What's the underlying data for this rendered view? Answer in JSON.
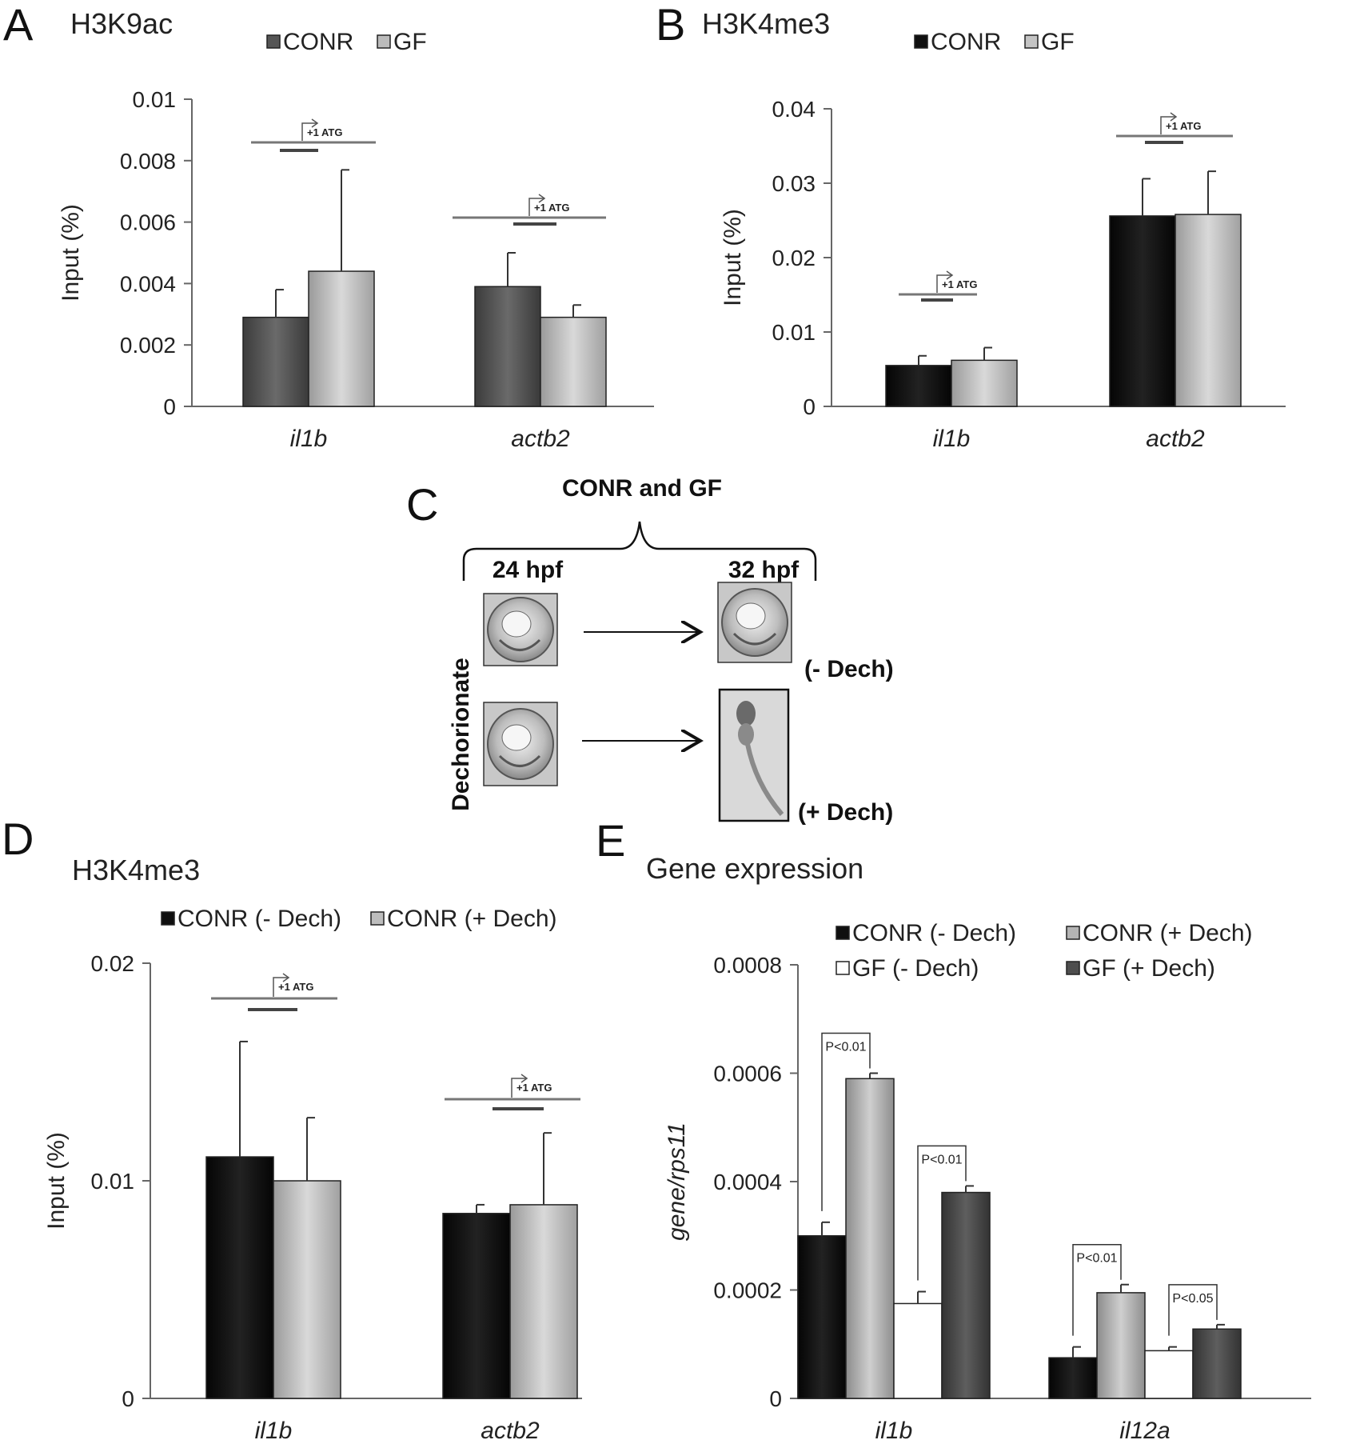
{
  "chart_data": [
    {
      "id": "A",
      "panel_label": "A",
      "type": "bar",
      "title": "H3K9ac",
      "ylabel": "Input (%)",
      "xlabel": "",
      "categories": [
        "il1b",
        "actb2"
      ],
      "series": [
        {
          "name": "CONR",
          "values": [
            0.0029,
            0.0039
          ],
          "errors": [
            0.0009,
            0.0011
          ]
        },
        {
          "name": "GF",
          "values": [
            0.0044,
            0.0029
          ],
          "errors": [
            0.0033,
            0.0004
          ]
        }
      ],
      "ylim": [
        0,
        0.01
      ],
      "yticks": [
        0,
        0.002,
        0.004,
        0.006,
        0.008,
        0.01
      ],
      "ytick_labels": [
        "0",
        "0.002",
        "0.004",
        "0.006",
        "0.008",
        "0.01"
      ],
      "legend": "top",
      "grid": false,
      "annotation": "+1 ATG",
      "colors": [
        "#5a5a5a",
        "#bdbdbd"
      ]
    },
    {
      "id": "B",
      "panel_label": "B",
      "type": "bar",
      "title": "H3K4me3",
      "ylabel": "Input (%)",
      "xlabel": "",
      "categories": [
        "il1b",
        "actb2"
      ],
      "series": [
        {
          "name": "CONR",
          "values": [
            0.0055,
            0.0256
          ],
          "errors": [
            0.0013,
            0.005
          ]
        },
        {
          "name": "GF",
          "values": [
            0.0062,
            0.0258
          ],
          "errors": [
            0.0017,
            0.0058
          ]
        }
      ],
      "ylim": [
        0,
        0.04
      ],
      "yticks": [
        0,
        0.01,
        0.02,
        0.03,
        0.04
      ],
      "ytick_labels": [
        "0",
        "0.01",
        "0.02",
        "0.03",
        "0.04"
      ],
      "legend": "top",
      "grid": false,
      "annotation": "+1 ATG",
      "colors": [
        "#0f0f0f",
        "#c4c4c4"
      ]
    },
    {
      "id": "D",
      "panel_label": "D",
      "type": "bar",
      "title": "H3K4me3",
      "ylabel": "Input (%)",
      "xlabel": "",
      "categories": [
        "il1b",
        "actb2"
      ],
      "series": [
        {
          "name": "CONR (- Dech)",
          "values": [
            0.0111,
            0.0085
          ],
          "errors": [
            0.0053,
            0.0004
          ]
        },
        {
          "name": "CONR (+ Dech)",
          "values": [
            0.01,
            0.0089
          ],
          "errors": [
            0.0029,
            0.0033
          ]
        }
      ],
      "ylim": [
        0,
        0.02
      ],
      "yticks": [
        0,
        0.01,
        0.02
      ],
      "ytick_labels": [
        "0",
        "0.01",
        "0.02"
      ],
      "legend": "top",
      "grid": false,
      "annotation": "+1 ATG",
      "colors": [
        "#0f0f0f",
        "#bdbdbd"
      ]
    },
    {
      "id": "E",
      "panel_label": "E",
      "type": "bar",
      "title": "Gene expression",
      "ylabel": "gene/rps11",
      "xlabel": "",
      "categories": [
        "il1b",
        "il12a"
      ],
      "series": [
        {
          "name": "CONR (- Dech)",
          "values": [
            0.0003,
            7.5e-05
          ],
          "errors": [
            2.5e-05,
            2e-05
          ]
        },
        {
          "name": "CONR (+ Dech)",
          "values": [
            0.00059,
            0.000195
          ],
          "errors": [
            1e-05,
            1.5e-05
          ]
        },
        {
          "name": "GF (- Dech)",
          "values": [
            0.000175,
            8.8e-05
          ],
          "errors": [
            2.2e-05,
            7e-06
          ]
        },
        {
          "name": "GF (+ Dech)",
          "values": [
            0.00038,
            0.000128
          ],
          "errors": [
            1.2e-05,
            8e-06
          ]
        }
      ],
      "ylim": [
        0,
        0.0008
      ],
      "yticks": [
        0,
        0.0002,
        0.0004,
        0.0006,
        0.0008
      ],
      "ytick_labels": [
        "0",
        "0.0002",
        "0.0004",
        "0.0006",
        "0.0008"
      ],
      "legend": "top",
      "grid": false,
      "significance": [
        {
          "category": "il1b",
          "pair": [
            0,
            1
          ],
          "label": "P<0.01"
        },
        {
          "category": "il1b",
          "pair": [
            2,
            3
          ],
          "label": "P<0.01"
        },
        {
          "category": "il12a",
          "pair": [
            0,
            1
          ],
          "label": "P<0.01"
        },
        {
          "category": "il12a",
          "pair": [
            2,
            3
          ],
          "label": "P<0.05"
        }
      ],
      "colors": [
        "#0f0f0f",
        "#b4b4b4",
        "#ffffff",
        "#4e4e4e"
      ]
    }
  ],
  "schematic": {
    "panel_label": "C",
    "title": "CONR and GF",
    "time_start": "24 hpf",
    "time_end": "32 hpf",
    "side_label": "Dechorionate",
    "row_labels": [
      "(- Dech)",
      "(+ Dech)"
    ]
  }
}
